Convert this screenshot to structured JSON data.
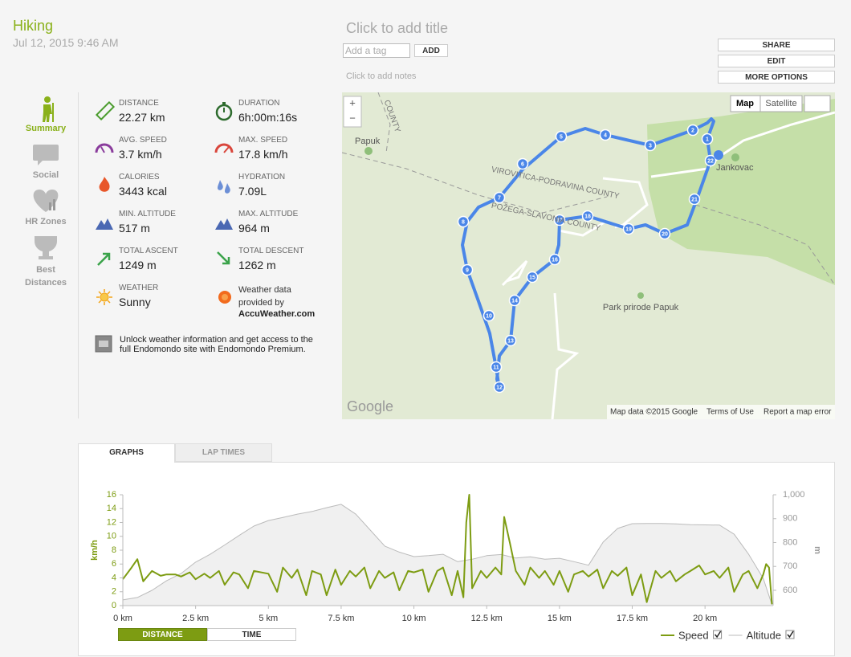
{
  "header": {
    "title": "Hiking",
    "date": "Jul 12, 2015 9:46 AM"
  },
  "workout": {
    "title_placeholder": "Click to add title",
    "tag_placeholder": "Add a tag",
    "add_button": "ADD",
    "notes_placeholder": "Click to add notes"
  },
  "actions": [
    "SHARE",
    "EDIT",
    "MORE OPTIONS"
  ],
  "sidebar": [
    "Summary",
    "Social",
    "HR Zones",
    "Best Distances"
  ],
  "stats": [
    {
      "label": "DISTANCE",
      "value": "22.27 km"
    },
    {
      "label": "DURATION",
      "value": "6h:00m:16s"
    },
    {
      "label": "AVG. SPEED",
      "value": "3.7 km/h"
    },
    {
      "label": "MAX. SPEED",
      "value": "17.8 km/h"
    },
    {
      "label": "CALORIES",
      "value": "3443 kcal"
    },
    {
      "label": "HYDRATION",
      "value": "7.09L"
    },
    {
      "label": "MIN. ALTITUDE",
      "value": "517 m"
    },
    {
      "label": "MAX. ALTITUDE",
      "value": "964 m"
    },
    {
      "label": "TOTAL ASCENT",
      "value": "1249 m"
    },
    {
      "label": "TOTAL DESCENT",
      "value": "1262 m"
    }
  ],
  "weather": {
    "label": "WEATHER",
    "value": "Sunny",
    "provider_text": "Weather data provided by",
    "provider": "AccuWeather.com"
  },
  "premium_note": "Unlock weather information and get access to the full Endomondo site with Endomondo Premium.",
  "map": {
    "labels": [
      "Papuk",
      "Jankovac",
      "VIROVITICA-PODRAVINA COUNTY",
      "POŽEGA-SLAVONIA COUNTY",
      "Park prirode Papuk",
      "COUNTY"
    ],
    "controls": [
      "Map",
      "Satellite",
      "+",
      "−"
    ],
    "logo": "Google",
    "attribution": [
      "Map data ©2015 Google",
      "Terms of Use",
      "Report a map error"
    ],
    "markers": [
      1,
      2,
      3,
      4,
      5,
      6,
      7,
      8,
      9,
      10,
      11,
      12,
      13,
      14,
      15,
      16,
      17,
      18,
      19,
      20,
      21,
      22
    ]
  },
  "tabs": [
    "GRAPHS",
    "LAP TIMES"
  ],
  "toggles": [
    "DISTANCE",
    "TIME"
  ],
  "chart_data": {
    "type": "line",
    "xlim": [
      0,
      22.34
    ],
    "xticks": [
      {
        "value": 0,
        "label": "0 km"
      },
      {
        "value": 2.5,
        "label": "2.5 km"
      },
      {
        "value": 5,
        "label": "5 km"
      },
      {
        "value": 7.5,
        "label": "7.5 km"
      },
      {
        "value": 10,
        "label": "10 km"
      },
      {
        "value": 12.5,
        "label": "12.5 km"
      },
      {
        "value": 15,
        "label": "15 km"
      },
      {
        "value": 17.5,
        "label": "17.5 km"
      },
      {
        "value": 20,
        "label": "20 km"
      }
    ],
    "ylabel": "km/h",
    "ylim": [
      0,
      16
    ],
    "yticks": [
      0,
      2,
      4,
      6,
      8,
      10,
      12,
      14,
      16
    ],
    "y2label": "m",
    "y2lim": [
      536,
      1000
    ],
    "y2ticks": [
      600,
      700,
      800,
      900,
      {
        "value": 1000,
        "label": "1,000"
      }
    ],
    "series": [
      {
        "name": "Altitude",
        "axis": "y2",
        "color": "#bbbbbb",
        "fill": "#f0f0f0",
        "x": [
          0,
          0.5,
          1,
          1.5,
          2,
          2.5,
          3,
          3.5,
          4,
          4.5,
          5,
          5.5,
          6,
          6.5,
          7,
          7.5,
          8,
          8.5,
          9,
          9.5,
          10,
          10.5,
          11,
          11.5,
          12,
          12.5,
          13,
          13.5,
          14,
          14.5,
          15,
          15.5,
          16,
          16.5,
          17,
          17.5,
          18,
          18.5,
          19,
          19.5,
          20,
          20.5,
          21,
          21.5,
          22,
          22.3
        ],
        "values": [
          560,
          570,
          600,
          640,
          670,
          718,
          751,
          790,
          830,
          869,
          892,
          905,
          919,
          930,
          946,
          960,
          919,
          852,
          785,
          760,
          741,
          745,
          751,
          720,
          730,
          745,
          750,
          735,
          740,
          730,
          734,
          720,
          705,
          802,
          859,
          879,
          880,
          880,
          878,
          875,
          874,
          873,
          835,
          751,
          650,
          540
        ]
      },
      {
        "name": "Speed",
        "axis": "y",
        "color": "#7d9c12",
        "x": [
          0,
          0.3,
          0.5,
          0.7,
          1,
          1.3,
          1.5,
          1.8,
          2,
          2.3,
          2.5,
          2.8,
          3,
          3.3,
          3.5,
          3.8,
          4,
          4.3,
          4.5,
          5,
          5.3,
          5.5,
          5.8,
          6,
          6.3,
          6.5,
          6.8,
          7,
          7.3,
          7.5,
          7.8,
          8,
          8.3,
          8.5,
          8.8,
          9,
          9.3,
          9.5,
          9.8,
          10,
          10.3,
          10.5,
          10.8,
          11,
          11.3,
          11.5,
          11.7,
          11.8,
          11.9,
          12,
          12.3,
          12.5,
          12.8,
          13,
          13.1,
          13.3,
          13.5,
          13.8,
          14,
          14.3,
          14.5,
          14.8,
          15,
          15.3,
          15.5,
          15.8,
          16,
          16.3,
          16.5,
          16.8,
          17,
          17.3,
          17.5,
          17.8,
          18,
          18.3,
          18.5,
          18.8,
          19,
          19.3,
          19.5,
          19.8,
          20,
          20.3,
          20.5,
          20.8,
          21,
          21.3,
          21.5,
          21.8,
          22,
          22.1,
          22.2,
          22.3
        ],
        "values": [
          3.8,
          5.5,
          6.7,
          3.5,
          5,
          4.3,
          4.5,
          4.5,
          4.2,
          4.8,
          3.8,
          4.6,
          4,
          5,
          3,
          4.8,
          4.5,
          2.5,
          5,
          4.6,
          2,
          5.5,
          4,
          5.2,
          1.5,
          5,
          4.5,
          1.5,
          5.2,
          3,
          5,
          4.2,
          5.5,
          2.5,
          5,
          4,
          4.8,
          2.2,
          5,
          4.8,
          5.2,
          2,
          5,
          5.5,
          1.5,
          5,
          1.2,
          12,
          16,
          2.5,
          5,
          4,
          5.5,
          4.5,
          12.8,
          9,
          5,
          3,
          5.5,
          4,
          5,
          3,
          5,
          2,
          4.5,
          5,
          4.2,
          5.2,
          2.5,
          5,
          4.3,
          5.5,
          1.5,
          4.5,
          0.5,
          5,
          4,
          5,
          3.5,
          4.5,
          5,
          5.8,
          4.5,
          5,
          4,
          5.5,
          2,
          4.5,
          5,
          2.5,
          4.5,
          6,
          5.5,
          0.2
        ]
      }
    ],
    "legend_order": [
      "Speed",
      "Altitude"
    ]
  }
}
